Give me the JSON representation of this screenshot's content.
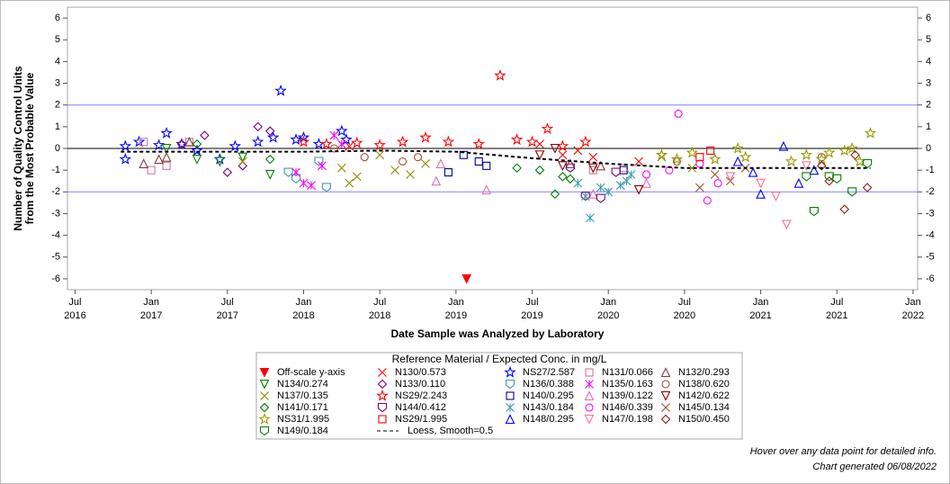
{
  "chart_data": {
    "type": "scatter",
    "xlabel": "Date Sample was Analyzed by Laboratory",
    "ylabel": [
      "Number of Quality Control Units",
      "from the Most Probable Value"
    ],
    "legend_title": "Reference Material / Expected Conc. in mg/L",
    "notes": [
      "Hover over any data point for detailed info.",
      "Chart generated 06/08/2022"
    ],
    "xlim": [
      2016.45,
      2022.03
    ],
    "ylim": [
      -6.5,
      6.5
    ],
    "xticks": [
      {
        "value": 2016.5,
        "label": [
          "Jul",
          "2016"
        ]
      },
      {
        "value": 2017.0,
        "label": [
          "Jan",
          "2017"
        ]
      },
      {
        "value": 2017.5,
        "label": [
          "Jul",
          "2017"
        ]
      },
      {
        "value": 2018.0,
        "label": [
          "Jan",
          "2018"
        ]
      },
      {
        "value": 2018.5,
        "label": [
          "Jul",
          "2018"
        ]
      },
      {
        "value": 2019.0,
        "label": [
          "Jan",
          "2019"
        ]
      },
      {
        "value": 2019.5,
        "label": [
          "Jul",
          "2019"
        ]
      },
      {
        "value": 2020.0,
        "label": [
          "Jan",
          "2020"
        ]
      },
      {
        "value": 2020.5,
        "label": [
          "Jul",
          "2020"
        ]
      },
      {
        "value": 2021.0,
        "label": [
          "Jan",
          "2021"
        ]
      },
      {
        "value": 2021.5,
        "label": [
          "Jul",
          "2021"
        ]
      },
      {
        "value": 2022.0,
        "label": [
          "Jan",
          "2022"
        ]
      }
    ],
    "yticks": [
      6,
      5,
      4,
      3,
      2,
      1,
      0,
      -1,
      -2,
      -3,
      -4,
      -5,
      -6
    ],
    "reference_lines": [
      {
        "value": 2,
        "color": "#8080ff"
      },
      {
        "value": -2,
        "color": "#8080ff"
      },
      {
        "value": 0,
        "color": "#000000"
      }
    ],
    "series": [
      {
        "name": "Off-scale y-axis",
        "color": "#ff0000",
        "marker": "tri-down-filled",
        "x": [
          2019.07
        ],
        "values": [
          -6
        ]
      },
      {
        "name": "N130/0.573",
        "color": "#ff0000",
        "marker": "x",
        "x": [
          2018.3,
          2019.55,
          2019.7,
          2019.8,
          2019.9,
          2020.2
        ],
        "values": [
          0.1,
          0.2,
          -0.3,
          -0.1,
          -0.4,
          -0.6
        ]
      },
      {
        "name": "NS27/2.587",
        "color": "#0000ff",
        "marker": "star",
        "x": [
          2016.83,
          2016.83,
          2016.92,
          2017.05,
          2017.1,
          2017.2,
          2017.3,
          2017.45,
          2017.55,
          2017.7,
          2017.8,
          2017.85,
          2017.95,
          2018.0,
          2018.1,
          2018.25,
          2018.28
        ],
        "values": [
          0.1,
          -0.5,
          0.3,
          0.15,
          0.7,
          0.2,
          -0.1,
          -0.5,
          0.1,
          0.3,
          0.5,
          2.65,
          0.4,
          0.5,
          0.2,
          0.8,
          0.4
        ]
      },
      {
        "name": "N131/0.066",
        "color": "#d07890",
        "marker": "square",
        "x": [
          2016.95,
          2017.0,
          2017.1,
          2017.25,
          2019.9,
          2020.1
        ],
        "values": [
          0.3,
          -1.0,
          -0.8,
          0.3,
          -1.0,
          -0.9
        ]
      },
      {
        "name": "N132/0.293",
        "color": "#8b3a3a",
        "marker": "tri-up",
        "x": [
          2016.95,
          2017.05,
          2017.1,
          2017.25,
          2019.75,
          2019.95
        ],
        "values": [
          -0.7,
          -0.5,
          -0.4,
          0.3,
          -0.7,
          -0.8
        ]
      },
      {
        "name": "N134/0.274",
        "color": "#008000",
        "marker": "tri-down",
        "x": [
          2017.1,
          2017.3,
          2017.45,
          2017.6,
          2017.78
        ],
        "values": [
          0.0,
          -0.5,
          -0.6,
          -0.4,
          -1.2
        ]
      },
      {
        "name": "N133/0.110",
        "color": "#800080",
        "marker": "diamond",
        "x": [
          2017.2,
          2017.35,
          2017.5,
          2017.6,
          2017.7,
          2017.78
        ],
        "values": [
          0.2,
          0.6,
          -1.1,
          -0.8,
          1.0,
          0.8
        ]
      },
      {
        "name": "N136/0.388",
        "color": "#3a9ab0",
        "marker": "shield",
        "x": [
          2017.9,
          2017.95,
          2018.1,
          2018.15
        ],
        "values": [
          -1.1,
          -1.4,
          -0.6,
          -1.8
        ]
      },
      {
        "name": "N135/0.163",
        "color": "#ff00ff",
        "marker": "asterisk",
        "x": [
          2017.95,
          2018.0,
          2018.05,
          2018.12,
          2018.2,
          2018.25
        ],
        "values": [
          -1.1,
          -1.6,
          -1.7,
          -0.8,
          0.6,
          0.2
        ]
      },
      {
        "name": "N138/0.620",
        "color": "#a0522d",
        "marker": "circle",
        "x": [
          2018.2,
          2018.4,
          2018.65,
          2018.75,
          2020.45,
          2021.4
        ],
        "values": [
          0.0,
          -0.4,
          -0.6,
          -0.4,
          -0.6,
          -0.4
        ]
      },
      {
        "name": "N137/0.135",
        "color": "#8b8b00",
        "marker": "x",
        "x": [
          2017.6,
          2018.25,
          2018.3,
          2018.35,
          2018.5,
          2018.6,
          2018.7,
          2018.8,
          2020.35,
          2020.55
        ],
        "values": [
          -0.6,
          -0.9,
          -1.6,
          -1.3,
          -0.3,
          -1.0,
          -1.2,
          -0.7,
          -0.4,
          -0.9
        ]
      },
      {
        "name": "NS29/2.243",
        "color": "#ff0000",
        "marker": "star",
        "x": [
          2018.0,
          2018.15,
          2018.35,
          2018.5,
          2018.65,
          2018.8,
          2018.95,
          2019.15,
          2019.29,
          2019.4,
          2019.5,
          2019.6,
          2019.7,
          2019.85
        ],
        "values": [
          0.3,
          0.2,
          0.25,
          0.15,
          0.3,
          0.5,
          0.3,
          0.2,
          3.35,
          0.4,
          0.3,
          0.9,
          0.1,
          0.3
        ]
      },
      {
        "name": "N140/0.295",
        "color": "#000099",
        "marker": "square",
        "x": [
          2018.95,
          2019.05,
          2019.15,
          2019.2,
          2020.1
        ],
        "values": [
          -1.1,
          -0.3,
          -0.6,
          -0.8,
          -1.0
        ]
      },
      {
        "name": "N139/0.122",
        "color": "#e070b0",
        "marker": "tri-up",
        "x": [
          2018.87,
          2018.9,
          2019.2,
          2019.9,
          2020.25
        ],
        "values": [
          -1.5,
          -0.7,
          -1.9,
          -2.1,
          -1.6
        ]
      },
      {
        "name": "N142/0.622",
        "color": "#8b0000",
        "marker": "tri-down",
        "x": [
          2019.55,
          2019.65,
          2019.7,
          2019.9,
          2020.2
        ],
        "values": [
          -0.3,
          0.0,
          -0.8,
          -0.9,
          -1.9
        ]
      },
      {
        "name": "N141/0.171",
        "color": "#008000",
        "marker": "diamond",
        "x": [
          2017.3,
          2017.78,
          2019.4,
          2019.55,
          2019.65,
          2019.7,
          2019.75
        ],
        "values": [
          0.2,
          -0.5,
          -0.9,
          -1.0,
          -2.1,
          -1.3,
          -1.4
        ]
      },
      {
        "name": "N144/0.412",
        "color": "#800080",
        "marker": "shield",
        "x": [
          2019.75,
          2019.85,
          2019.95,
          2020.05
        ],
        "values": [
          -0.9,
          -2.2,
          -2.3,
          -1.1
        ]
      },
      {
        "name": "N143/0.184",
        "color": "#3a9ab0",
        "marker": "asterisk",
        "x": [
          2019.8,
          2019.85,
          2019.88,
          2019.95,
          2020.0,
          2020.08,
          2020.12,
          2020.15
        ],
        "values": [
          -1.6,
          -2.2,
          -3.2,
          -1.8,
          -2.0,
          -1.7,
          -1.5,
          -1.2
        ]
      },
      {
        "name": "N146/0.339",
        "color": "#ff00ff",
        "marker": "circle",
        "x": [
          2020.25,
          2020.4,
          2020.46,
          2020.6,
          2020.65,
          2020.72
        ],
        "values": [
          -1.2,
          -1.0,
          1.6,
          -0.7,
          -2.4,
          -1.6
        ]
      },
      {
        "name": "N145/0.134",
        "color": "#a0522d",
        "marker": "x",
        "x": [
          2020.6,
          2020.7,
          2020.8,
          2020.9
        ],
        "values": [
          -1.8,
          -1.2,
          -1.5,
          -0.9
        ]
      },
      {
        "name": "NS31/1.995",
        "color": "#999900",
        "marker": "star",
        "x": [
          2020.35,
          2020.45,
          2020.55,
          2020.7,
          2020.85,
          2020.9,
          2021.2,
          2021.3,
          2021.4,
          2021.45,
          2021.55,
          2021.6,
          2021.65,
          2021.72
        ],
        "values": [
          -0.3,
          -0.5,
          -0.2,
          -0.5,
          0.0,
          -0.4,
          -0.6,
          -0.3,
          -0.5,
          -0.2,
          -0.1,
          0.0,
          -0.6,
          0.7
        ]
      },
      {
        "name": "NS29/1.995",
        "color": "#ff0000",
        "marker": "square",
        "x": [
          2020.6,
          2020.67
        ],
        "values": [
          -0.4,
          -0.1
        ]
      },
      {
        "name": "N148/0.295",
        "color": "#0000ff",
        "marker": "tri-up",
        "x": [
          2020.85,
          2020.95,
          2021.0,
          2021.15,
          2021.25,
          2021.35
        ],
        "values": [
          -0.6,
          -1.1,
          -2.1,
          0.1,
          -1.6,
          -1.0
        ]
      },
      {
        "name": "N147/0.198",
        "color": "#ff7090",
        "marker": "tri-down",
        "x": [
          2020.8,
          2021.0,
          2021.1,
          2021.17,
          2021.3
        ],
        "values": [
          -1.3,
          -1.6,
          -2.2,
          -3.5,
          -0.8
        ]
      },
      {
        "name": "N150/0.450",
        "color": "#8b1a1a",
        "marker": "diamond",
        "x": [
          2021.4,
          2021.45,
          2021.55,
          2021.62,
          2021.7
        ],
        "values": [
          -0.8,
          -1.5,
          -2.8,
          -0.3,
          -1.8
        ]
      },
      {
        "name": "N149/0.184",
        "color": "#008000",
        "marker": "shield",
        "x": [
          2021.3,
          2021.35,
          2021.45,
          2021.5,
          2021.6,
          2021.7
        ],
        "values": [
          -1.3,
          -2.9,
          -1.3,
          -1.4,
          -2.0,
          -0.7
        ]
      },
      {
        "name": "Loess, Smooth=0.5",
        "color": "#000000",
        "marker": "dashed-line",
        "x": [
          2016.8,
          2017.5,
          2018.0,
          2018.5,
          2019.0,
          2019.5,
          2020.0,
          2020.5,
          2021.0,
          2021.5,
          2021.72
        ],
        "values": [
          -0.15,
          -0.15,
          -0.15,
          -0.1,
          -0.15,
          -0.45,
          -0.7,
          -0.9,
          -0.9,
          -0.9,
          -0.9
        ]
      }
    ]
  }
}
